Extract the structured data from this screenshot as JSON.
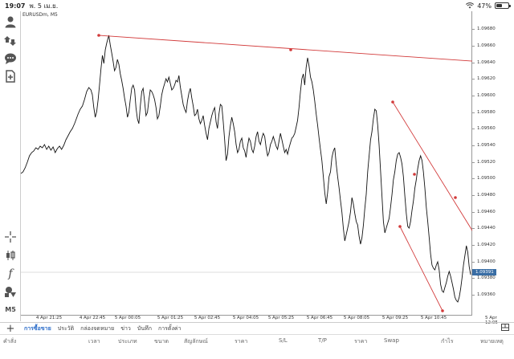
{
  "status_bar": {
    "time": "19:07",
    "date": "พ. 5 เม.ย.",
    "battery_percent": "47%",
    "wifi_icon": "wifi-icon",
    "battery_icon": "battery-icon"
  },
  "chart": {
    "symbol": "EURUSDm, M5",
    "line_color": "#111111",
    "trendline_color": "#d23a3a",
    "current_price": "1.09391",
    "current_price_color": "#3a6ea5",
    "price_labels": [
      "1.09680",
      "1.09660",
      "1.09640",
      "1.09620",
      "1.09600",
      "1.09580",
      "1.09560",
      "1.09540",
      "1.09520",
      "1.09500",
      "1.09480",
      "1.09460",
      "1.09440",
      "1.09420",
      "1.09400",
      "1.09380",
      "1.09360"
    ],
    "time_labels": [
      "4 Apr 21:25",
      "4 Apr 22:45",
      "5 Apr 00:05",
      "5 Apr 01:25",
      "5 Apr 02:45",
      "5 Apr 04:05",
      "5 Apr 05:25",
      "5 Apr 06:45",
      "5 Apr 08:05",
      "5 Apr 09:25",
      "5 Apr 10:45",
      "5 Apr 12:05"
    ]
  },
  "sidebar": {
    "items": [
      {
        "name": "account-icon"
      },
      {
        "name": "trade-icon"
      },
      {
        "name": "chat-icon"
      },
      {
        "name": "new-order-icon"
      },
      {
        "name": "crosshair-icon"
      },
      {
        "name": "chart-type-icon"
      },
      {
        "name": "indicators-icon"
      },
      {
        "name": "objects-icon"
      },
      {
        "name": "timeframe-icon",
        "label": "M5"
      }
    ]
  },
  "tabs": {
    "add_label": "+",
    "items": [
      {
        "label": "การซื้อขาย",
        "active": true
      },
      {
        "label": "ประวัติ",
        "active": false
      },
      {
        "label": "กล่องจดหมาย",
        "active": false
      },
      {
        "label": "ข่าว",
        "active": false
      },
      {
        "label": "บันทึก",
        "active": false
      },
      {
        "label": "การตั้งค่า",
        "active": false
      }
    ]
  },
  "table_header": {
    "columns": [
      "คำสั่ง",
      "เวลา",
      "ประเภท",
      "ขนาด",
      "สัญลักษณ์",
      "ราคา",
      "S/L",
      "T/P",
      "ราคา",
      "Swap",
      "กำไร",
      "หมายเหตุ"
    ]
  }
}
